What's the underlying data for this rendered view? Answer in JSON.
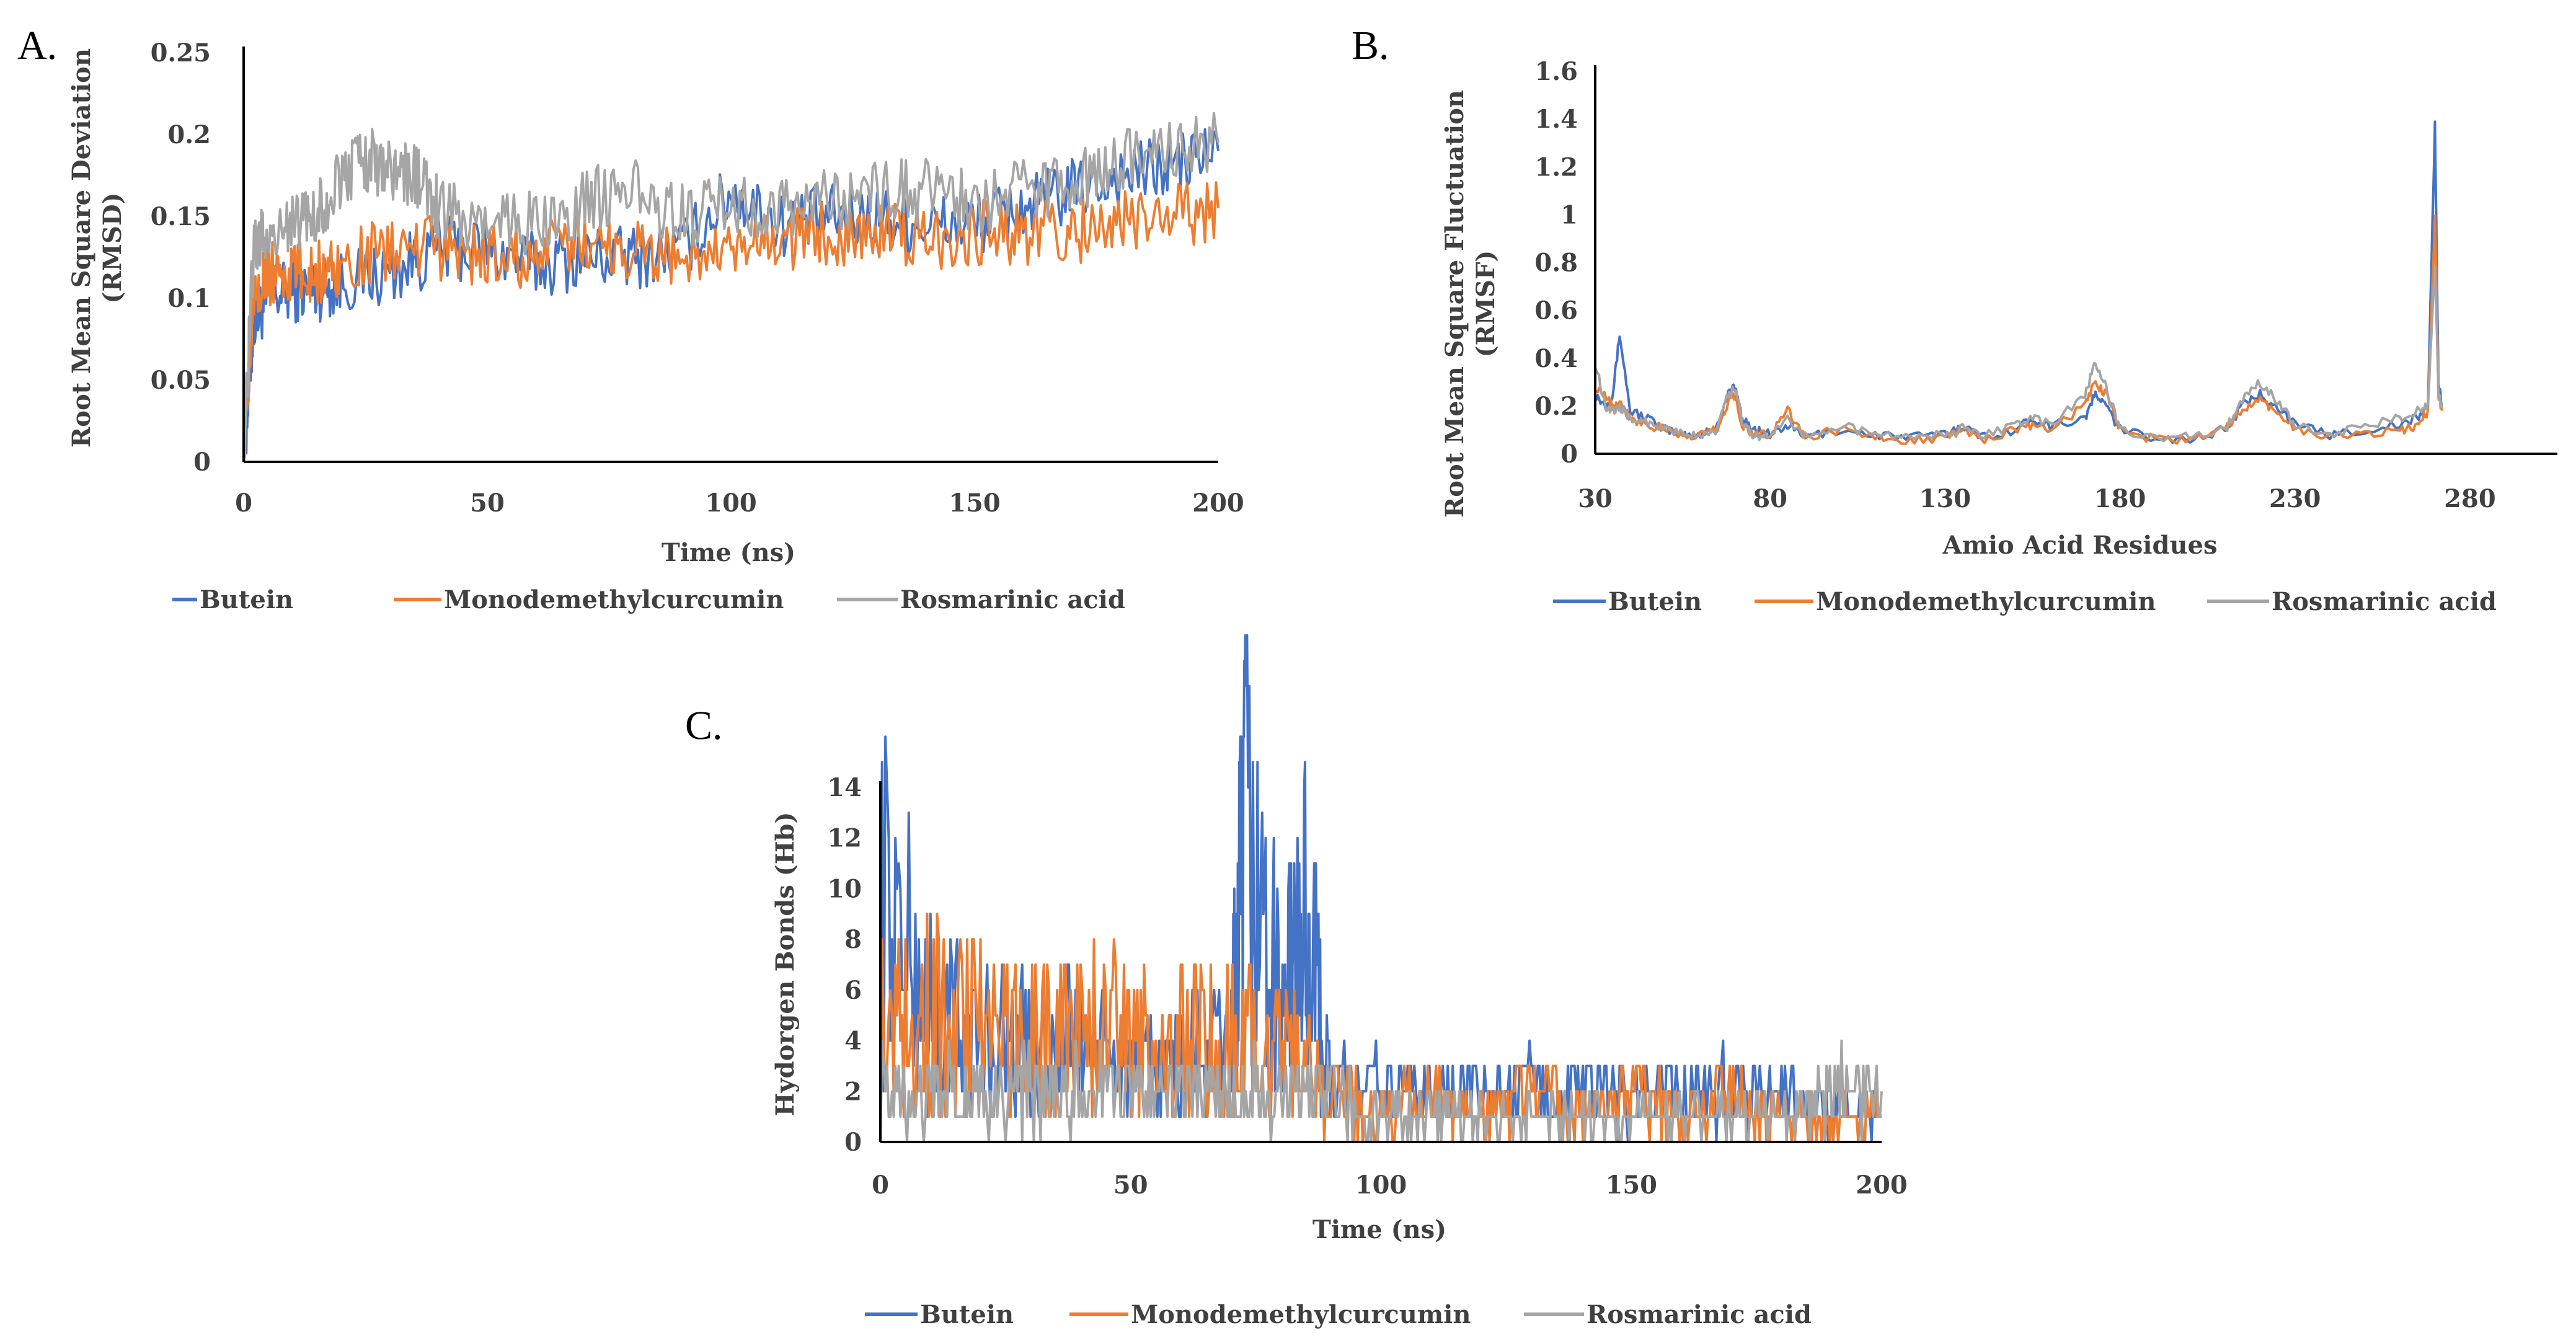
{
  "colors": {
    "butein": "#4472C4",
    "monodemethylcurcumin": "#ED7D31",
    "rosmarinic": "#A5A5A5",
    "axis": "#000000",
    "text": "#404040"
  },
  "chart_data": [
    {
      "panel": "A.",
      "type": "line",
      "xlabel": "Time (ns)",
      "ylabel": [
        "Root Mean Square Deviation",
        "(RMSD)"
      ],
      "xlim": [
        0,
        200
      ],
      "ylim": [
        0,
        0.25
      ],
      "xticks": [
        "0",
        "50",
        "100",
        "150",
        "200"
      ],
      "yticks": [
        "0",
        "0.05",
        "0.1",
        "0.15",
        "0.2",
        "0.25"
      ],
      "legend_position": "bottom",
      "series": [
        {
          "name": "Butein",
          "color": "#4472C4",
          "x": [
            0,
            2,
            5,
            10,
            15,
            20,
            30,
            40,
            50,
            60,
            70,
            80,
            90,
            100,
            110,
            120,
            130,
            140,
            150,
            160,
            170,
            180,
            190,
            200
          ],
          "y": [
            0.0,
            0.085,
            0.1,
            0.105,
            0.105,
            0.11,
            0.115,
            0.13,
            0.13,
            0.12,
            0.125,
            0.125,
            0.13,
            0.165,
            0.145,
            0.15,
            0.15,
            0.145,
            0.145,
            0.155,
            0.165,
            0.175,
            0.18,
            0.19
          ]
        },
        {
          "name": "Monodemethylcurcumin",
          "color": "#ED7D31",
          "x": [
            0,
            2,
            5,
            10,
            15,
            20,
            30,
            40,
            50,
            60,
            70,
            80,
            90,
            100,
            110,
            120,
            130,
            140,
            150,
            160,
            170,
            180,
            190,
            200
          ],
          "y": [
            0.0,
            0.11,
            0.115,
            0.115,
            0.115,
            0.12,
            0.13,
            0.13,
            0.125,
            0.125,
            0.135,
            0.13,
            0.125,
            0.125,
            0.135,
            0.14,
            0.14,
            0.135,
            0.14,
            0.14,
            0.14,
            0.145,
            0.15,
            0.155
          ]
        },
        {
          "name": "Rosmarinic acid",
          "color": "#A5A5A5",
          "x": [
            0,
            2,
            5,
            10,
            15,
            20,
            25,
            30,
            35,
            40,
            50,
            60,
            70,
            80,
            90,
            100,
            110,
            120,
            130,
            140,
            150,
            160,
            170,
            180,
            190,
            200
          ],
          "y": [
            0.0,
            0.13,
            0.14,
            0.145,
            0.15,
            0.175,
            0.185,
            0.18,
            0.175,
            0.155,
            0.145,
            0.145,
            0.16,
            0.165,
            0.15,
            0.155,
            0.155,
            0.16,
            0.165,
            0.165,
            0.16,
            0.165,
            0.17,
            0.185,
            0.19,
            0.195
          ]
        }
      ]
    },
    {
      "panel": "B.",
      "type": "line",
      "xlabel": "Amio Acid Residues",
      "ylabel": [
        "Root Mean Square Fluctuation",
        "(RMSF)"
      ],
      "xlim": [
        30,
        305
      ],
      "ylim": [
        0,
        1.6
      ],
      "xticks": [
        "30",
        "80",
        "130",
        "180",
        "230",
        "280"
      ],
      "xtick_values": [
        30,
        80,
        130,
        180,
        230,
        280
      ],
      "yticks": [
        "0",
        "0.2",
        "0.4",
        "0.6",
        "0.8",
        "1",
        "1.2",
        "1.4",
        "1.6"
      ],
      "legend_position": "bottom",
      "series": [
        {
          "name": "Butein",
          "color": "#4472C4",
          "x": [
            30,
            33,
            35,
            37,
            40,
            45,
            50,
            55,
            60,
            65,
            68,
            70,
            72,
            75,
            80,
            85,
            90,
            100,
            110,
            120,
            130,
            135,
            140,
            150,
            155,
            160,
            170,
            173,
            176,
            180,
            190,
            200,
            210,
            215,
            220,
            225,
            230,
            240,
            250,
            260,
            265,
            268,
            270,
            271,
            272
          ],
          "y": [
            0.25,
            0.2,
            0.25,
            0.5,
            0.18,
            0.15,
            0.1,
            0.08,
            0.08,
            0.12,
            0.25,
            0.28,
            0.15,
            0.1,
            0.08,
            0.12,
            0.07,
            0.1,
            0.08,
            0.07,
            0.08,
            0.12,
            0.07,
            0.1,
            0.15,
            0.12,
            0.15,
            0.25,
            0.2,
            0.1,
            0.07,
            0.06,
            0.1,
            0.2,
            0.25,
            0.2,
            0.12,
            0.08,
            0.1,
            0.12,
            0.15,
            0.2,
            1.38,
            0.3,
            0.2
          ]
        },
        {
          "name": "Monodemethylcurcumin",
          "color": "#ED7D31",
          "x": [
            30,
            33,
            35,
            37,
            40,
            45,
            50,
            55,
            60,
            65,
            68,
            70,
            72,
            75,
            80,
            85,
            90,
            100,
            110,
            120,
            130,
            135,
            140,
            150,
            155,
            160,
            170,
            173,
            176,
            180,
            190,
            200,
            210,
            215,
            220,
            225,
            230,
            240,
            250,
            260,
            265,
            268,
            270,
            271,
            272
          ],
          "y": [
            0.28,
            0.25,
            0.2,
            0.22,
            0.15,
            0.12,
            0.1,
            0.07,
            0.08,
            0.1,
            0.22,
            0.25,
            0.12,
            0.08,
            0.08,
            0.18,
            0.07,
            0.1,
            0.07,
            0.06,
            0.07,
            0.1,
            0.06,
            0.1,
            0.12,
            0.1,
            0.2,
            0.3,
            0.25,
            0.1,
            0.06,
            0.06,
            0.1,
            0.18,
            0.22,
            0.18,
            0.1,
            0.07,
            0.08,
            0.1,
            0.12,
            0.18,
            1.0,
            0.25,
            0.18
          ]
        },
        {
          "name": "Rosmarinic acid",
          "color": "#A5A5A5",
          "x": [
            30,
            33,
            35,
            37,
            40,
            45,
            50,
            55,
            60,
            65,
            68,
            70,
            72,
            75,
            80,
            85,
            90,
            100,
            110,
            120,
            130,
            135,
            140,
            150,
            155,
            160,
            170,
            173,
            176,
            180,
            190,
            200,
            210,
            215,
            220,
            225,
            230,
            240,
            250,
            260,
            265,
            268,
            270,
            271,
            272
          ],
          "y": [
            0.38,
            0.2,
            0.18,
            0.2,
            0.15,
            0.13,
            0.1,
            0.08,
            0.08,
            0.1,
            0.25,
            0.27,
            0.14,
            0.08,
            0.07,
            0.15,
            0.07,
            0.12,
            0.08,
            0.07,
            0.08,
            0.11,
            0.07,
            0.12,
            0.15,
            0.12,
            0.25,
            0.38,
            0.28,
            0.1,
            0.06,
            0.07,
            0.1,
            0.22,
            0.3,
            0.22,
            0.12,
            0.08,
            0.12,
            0.15,
            0.18,
            0.2,
            0.8,
            0.25,
            0.2
          ]
        }
      ]
    },
    {
      "panel": "C.",
      "type": "line",
      "xlabel": "Time (ns)",
      "ylabel": [
        "Hydorgen Bonds (Hb)"
      ],
      "xlim": [
        0,
        200
      ],
      "ylim": [
        0,
        14
      ],
      "xticks": [
        "0",
        "50",
        "100",
        "150",
        "200"
      ],
      "yticks": [
        "0",
        "2",
        "4",
        "6",
        "8",
        "10",
        "12",
        "14"
      ],
      "legend_position": "bottom",
      "series": [
        {
          "name": "Butein",
          "color": "#4472C4",
          "x": [
            0,
            10,
            20,
            30,
            40,
            50,
            60,
            70,
            73,
            80,
            85,
            90,
            100,
            110,
            120,
            130,
            140,
            150,
            160,
            170,
            180,
            190,
            200
          ],
          "y": [
            10,
            5,
            4,
            4,
            4,
            3,
            3,
            4,
            12,
            5,
            9,
            2,
            2,
            2,
            2,
            2,
            2,
            2,
            2,
            2,
            2,
            1,
            1
          ]
        },
        {
          "name": "Monodemethylcurcumin",
          "color": "#ED7D31",
          "x": [
            0,
            10,
            20,
            30,
            40,
            50,
            60,
            70,
            80,
            90,
            100,
            110,
            120,
            130,
            140,
            150,
            160,
            170,
            180,
            190,
            200
          ],
          "y": [
            5,
            5,
            5,
            4,
            5,
            4,
            4,
            4,
            4,
            2,
            1,
            2,
            1,
            2,
            1,
            2,
            1,
            2,
            1,
            1,
            1
          ]
        },
        {
          "name": "Rosmarinic acid",
          "color": "#A5A5A5",
          "x": [
            0,
            10,
            20,
            30,
            40,
            50,
            60,
            70,
            80,
            90,
            100,
            110,
            120,
            130,
            140,
            150,
            160,
            170,
            180,
            190,
            200
          ],
          "y": [
            2,
            2,
            2,
            2,
            2,
            2,
            2,
            2,
            2,
            2,
            1,
            1,
            1,
            1,
            1,
            1,
            1,
            1,
            1,
            2,
            2
          ]
        }
      ]
    }
  ]
}
